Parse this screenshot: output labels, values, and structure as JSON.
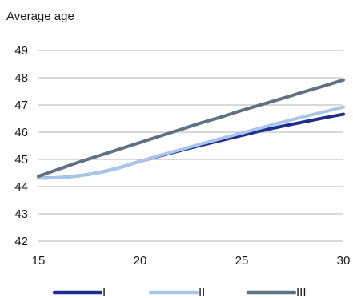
{
  "chart_data": {
    "type": "line",
    "title": "",
    "ylabel": "Average age",
    "xlabel": "",
    "xlim": [
      15,
      30
    ],
    "ylim": [
      42,
      49
    ],
    "xticks": [
      15,
      20,
      25,
      30
    ],
    "yticks": [
      42,
      43,
      44,
      45,
      46,
      47,
      48,
      49
    ],
    "grid": "horizontal",
    "legend_position": "bottom",
    "series": [
      {
        "name": "I",
        "color": "#1f2f8f",
        "x": [
          15,
          16,
          17,
          18,
          19,
          20,
          21,
          22,
          23,
          24,
          25,
          26,
          27,
          28,
          29,
          30
        ],
        "y": [
          44.32,
          44.33,
          44.4,
          44.52,
          44.7,
          44.93,
          45.13,
          45.33,
          45.52,
          45.7,
          45.88,
          46.06,
          46.22,
          46.37,
          46.52,
          46.66
        ]
      },
      {
        "name": "II",
        "color": "#a9c6ea",
        "x": [
          15,
          16,
          17,
          18,
          19,
          20,
          21,
          22,
          23,
          24,
          25,
          26,
          27,
          28,
          29,
          30
        ],
        "y": [
          44.32,
          44.33,
          44.4,
          44.52,
          44.7,
          44.93,
          45.15,
          45.36,
          45.57,
          45.77,
          45.97,
          46.17,
          46.37,
          46.56,
          46.74,
          46.92
        ]
      },
      {
        "name": "III",
        "color": "#5d7282",
        "x": [
          15,
          16,
          17,
          18,
          19,
          20,
          21,
          22,
          23,
          24,
          25,
          26,
          27,
          28,
          29,
          30
        ],
        "y": [
          44.38,
          44.64,
          44.9,
          45.14,
          45.38,
          45.62,
          45.86,
          46.1,
          46.34,
          46.56,
          46.8,
          47.02,
          47.24,
          47.47,
          47.69,
          47.92
        ]
      }
    ]
  }
}
